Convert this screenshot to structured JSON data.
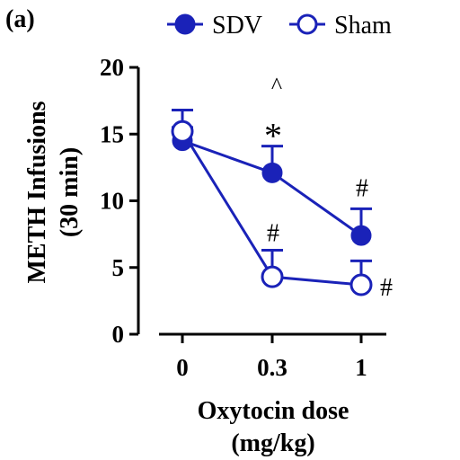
{
  "panel_label": "(a)",
  "colors": {
    "series": "#1a22b8",
    "axis": "#000000"
  },
  "chart_data": {
    "type": "line",
    "ylabel_line1": "METH Infusions",
    "ylabel_line2": "(30 min)",
    "xlabel_line1": "Oxytocin dose",
    "xlabel_line2": "(mg/kg)",
    "categories": [
      "0",
      "0.3",
      "1"
    ],
    "ylim": [
      0,
      20
    ],
    "yticks": [
      "0",
      "5",
      "10",
      "15",
      "20"
    ],
    "legend_position": "top",
    "series": [
      {
        "name": "SDV",
        "marker": "filled-circle",
        "values": [
          14.5,
          12.1,
          7.4
        ],
        "error": [
          1.0,
          2.0,
          2.0
        ],
        "annotations": [
          "",
          "*",
          "#"
        ]
      },
      {
        "name": "Sham",
        "marker": "open-circle",
        "values": [
          15.2,
          4.3,
          3.7
        ],
        "error": [
          1.6,
          2.0,
          1.8
        ],
        "annotations": [
          "",
          "#",
          "#"
        ]
      }
    ],
    "extra_annotation": {
      "text": "^",
      "category": "0.3"
    }
  }
}
